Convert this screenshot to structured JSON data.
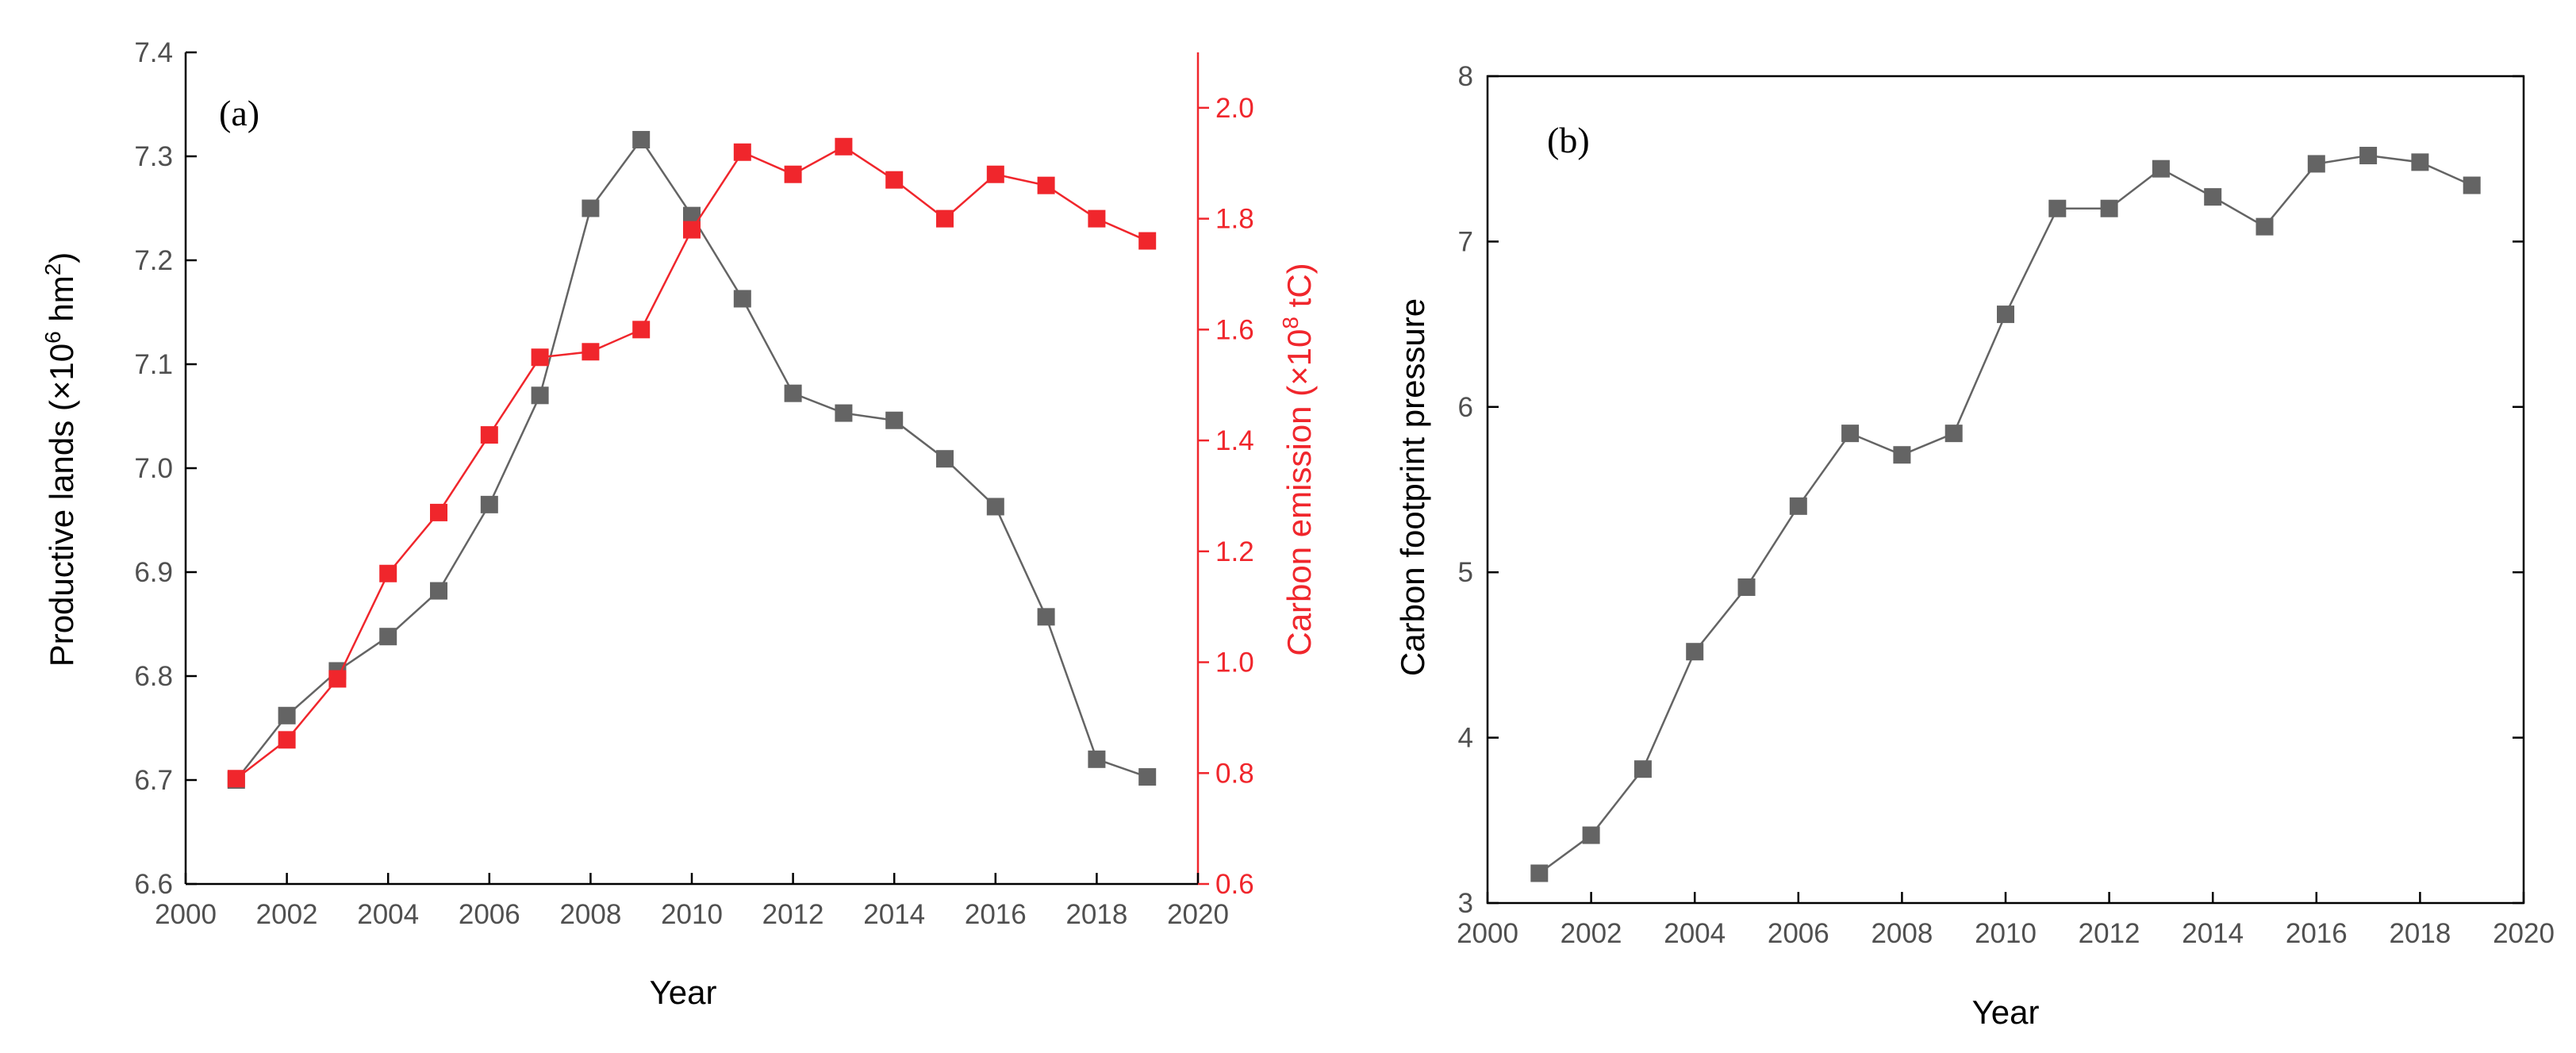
{
  "colors": {
    "gray_series": "#646464",
    "red_series": "#f0262c",
    "axis": "#000000"
  },
  "chart_data": [
    {
      "type": "line",
      "panel_label": "(a)",
      "xlabel": "Year",
      "xlim": [
        2000,
        2020
      ],
      "xticks": [
        2000,
        2002,
        2004,
        2006,
        2008,
        2010,
        2012,
        2014,
        2016,
        2018,
        2020
      ],
      "ylabel_left": {
        "pre": "Productive lands (×10",
        "sup1": "6",
        "mid": " hm",
        "sup2": "2",
        "post": ")"
      },
      "ylim_left": [
        6.6,
        7.4
      ],
      "yticks_left": [
        "6.6",
        "6.7",
        "6.8",
        "6.9",
        "7.0",
        "7.1",
        "7.2",
        "7.3",
        "7.4"
      ],
      "ylabel_right": {
        "pre": "Carbon emission (×10",
        "sup": "8",
        "post": " tC)"
      },
      "ylim_right": [
        0.6,
        2.1
      ],
      "yticks_right": [
        "0.6",
        "0.8",
        "1.0",
        "1.2",
        "1.4",
        "1.6",
        "1.8",
        "2.0"
      ],
      "x": [
        2001,
        2002,
        2003,
        2004,
        2005,
        2006,
        2007,
        2008,
        2009,
        2010,
        2011,
        2012,
        2013,
        2014,
        2015,
        2016,
        2017,
        2018,
        2019
      ],
      "series": [
        {
          "name": "Productive lands",
          "axis": "left",
          "color": "#646464",
          "values": [
            6.7,
            6.762,
            6.805,
            6.838,
            6.882,
            6.965,
            7.07,
            7.25,
            7.316,
            7.243,
            7.163,
            7.072,
            7.053,
            7.046,
            7.009,
            6.963,
            6.857,
            6.72,
            6.703
          ]
        },
        {
          "name": "Carbon emission",
          "axis": "right",
          "color": "#f0262c",
          "values": [
            0.79,
            0.86,
            0.97,
            1.16,
            1.27,
            1.41,
            1.55,
            1.56,
            1.6,
            1.78,
            1.92,
            1.88,
            1.93,
            1.87,
            1.8,
            1.88,
            1.86,
            1.8,
            1.76
          ]
        }
      ]
    },
    {
      "type": "line",
      "panel_label": "(b)",
      "xlabel": "Year",
      "ylabel": "Carbon footprint pressure",
      "xlim": [
        2000,
        2020
      ],
      "xticks": [
        2000,
        2002,
        2004,
        2006,
        2008,
        2010,
        2012,
        2014,
        2016,
        2018,
        2020
      ],
      "ylim": [
        3,
        8
      ],
      "yticks": [
        "3",
        "4",
        "5",
        "6",
        "7",
        "8"
      ],
      "x": [
        2001,
        2002,
        2003,
        2004,
        2005,
        2006,
        2007,
        2008,
        2009,
        2010,
        2011,
        2012,
        2013,
        2014,
        2015,
        2016,
        2017,
        2018,
        2019
      ],
      "series": [
        {
          "name": "Carbon footprint pressure",
          "color": "#646464",
          "values": [
            3.18,
            3.41,
            3.81,
            4.52,
            4.91,
            5.4,
            5.84,
            5.71,
            5.84,
            6.56,
            7.2,
            7.2,
            7.44,
            7.27,
            7.09,
            7.47,
            7.52,
            7.48,
            7.34
          ]
        }
      ]
    }
  ]
}
